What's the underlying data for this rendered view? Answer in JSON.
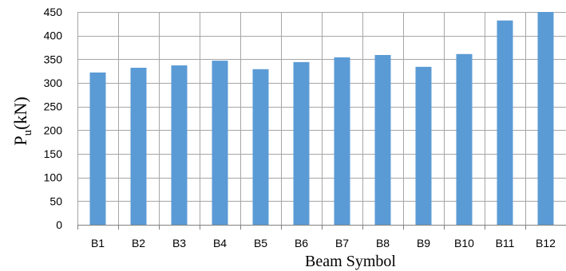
{
  "chart_data": {
    "type": "bar",
    "categories": [
      "B1",
      "B2",
      "B3",
      "B4",
      "B5",
      "B6",
      "B7",
      "B8",
      "B9",
      "B10",
      "B11",
      "B12"
    ],
    "values": [
      322,
      332,
      337,
      347,
      329,
      344,
      354,
      359,
      334,
      361,
      432,
      450
    ],
    "xlabel": "Beam Symbol",
    "ylabel_main": "P",
    "ylabel_sub": "u",
    "ylabel_unit": "(kN)",
    "ylim": [
      0,
      450
    ],
    "ytick_step": 50,
    "yticks": [
      "0",
      "50",
      "100",
      "150",
      "200",
      "250",
      "300",
      "350",
      "400",
      "450"
    ],
    "grid": true,
    "bar_color": "#5b9bd5",
    "grid_color": "#a6a6a6"
  }
}
